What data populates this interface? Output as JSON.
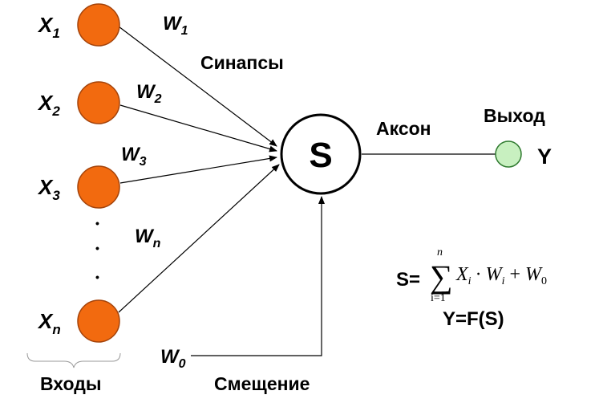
{
  "inputs": [
    {
      "name": "X",
      "sub": "1",
      "weight": "W",
      "weight_sub": "1"
    },
    {
      "name": "X",
      "sub": "2",
      "weight": "W",
      "weight_sub": "2"
    },
    {
      "name": "X",
      "sub": "3",
      "weight": "W",
      "weight_sub": "3"
    },
    {
      "name": "X",
      "sub": "n",
      "weight": "W",
      "weight_sub": "n"
    }
  ],
  "bias": {
    "weight": "W",
    "weight_sub": "0",
    "label": "Смещение"
  },
  "labels": {
    "synapses": "Синапсы",
    "axon": "Аксон",
    "output": "Выход",
    "inputs_group": "Входы"
  },
  "neuron": {
    "symbol": "S"
  },
  "output": {
    "symbol": "Y"
  },
  "formula": {
    "lhs": "S=",
    "sum_upper": "n",
    "sum_lower": "i=1",
    "sigma": "∑",
    "term_x": "X",
    "term_w": "W",
    "index": "i",
    "dot": "·",
    "plus": "+",
    "w0": "W",
    "w0_sub": "0",
    "activation": "Y=F(S)"
  },
  "ellipsis_dots": [
    "•",
    "•",
    "•"
  ],
  "colors": {
    "input_fill": "#f26a0f",
    "input_stroke": "#a4430a",
    "output_fill": "#c8f0c0",
    "output_stroke": "#2f7a2f",
    "line": "#000000"
  }
}
